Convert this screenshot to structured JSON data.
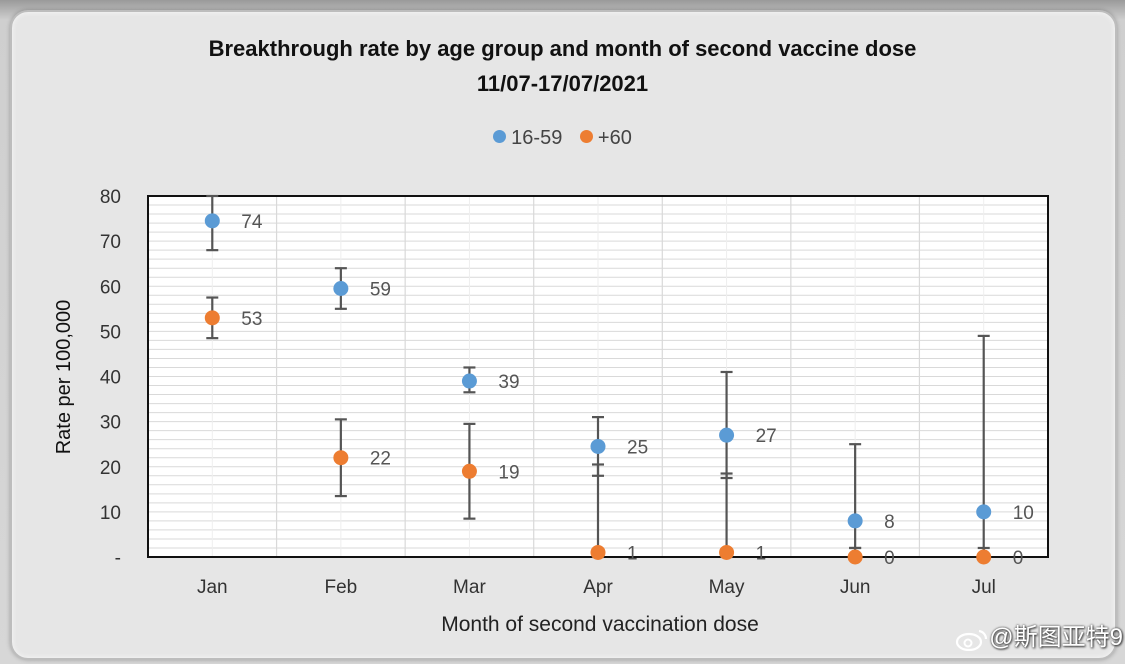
{
  "colors": {
    "series1": "#5b9bd5",
    "series2": "#ed7d31",
    "errorbar": "#555555",
    "grid": "#d9d9d9"
  },
  "watermark": {
    "text": "@斯图亚特9",
    "icon": "weibo-icon"
  },
  "chart_data": {
    "type": "scatter",
    "title": "Breakthrough rate by age group and month of second vaccine dose",
    "subtitle": "11/07-17/07/2021",
    "xlabel": "Month of second vaccination dose",
    "ylabel": "Rate per 100,000",
    "categories": [
      "Jan",
      "Feb",
      "Mar",
      "Apr",
      "May",
      "Jun",
      "Jul"
    ],
    "ylim": [
      0,
      80
    ],
    "yticks": [
      0,
      10,
      20,
      30,
      40,
      50,
      60,
      70,
      80
    ],
    "ytick_labels": [
      "-",
      "10",
      "20",
      "30",
      "40",
      "50",
      "60",
      "70",
      "80"
    ],
    "legend_position": "top",
    "grid": true,
    "series": [
      {
        "name": "16-59",
        "values": [
          74.5,
          59.5,
          39,
          24.5,
          27,
          8,
          10
        ],
        "labels": [
          "74",
          "59",
          "39",
          "25",
          "27",
          "8",
          "10"
        ],
        "error_low": [
          68,
          55,
          36.5,
          18,
          17.5,
          2,
          0
        ],
        "error_high": [
          80,
          64,
          42,
          31,
          41,
          25,
          49
        ]
      },
      {
        "name": "+60",
        "values": [
          53,
          22,
          19,
          1,
          1,
          0,
          0
        ],
        "labels": [
          "53",
          "22",
          "19",
          "1",
          "1",
          "0",
          "0"
        ],
        "error_low": [
          48.5,
          13.5,
          8.5,
          0,
          0,
          0,
          0
        ],
        "error_high": [
          57.5,
          30.5,
          29.5,
          20.5,
          18.5,
          2,
          2
        ]
      }
    ]
  }
}
